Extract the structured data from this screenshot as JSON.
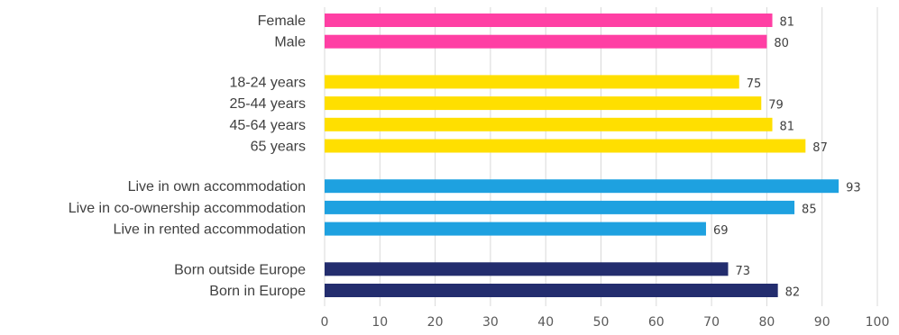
{
  "chart_data": {
    "type": "bar",
    "orientation": "horizontal",
    "title": "",
    "xlabel": "",
    "ylabel": "",
    "xlim": [
      0,
      100
    ],
    "x_ticks": [
      "0",
      "10",
      "20",
      "30",
      "40",
      "50",
      "60",
      "70",
      "80",
      "90",
      "100"
    ],
    "grid": true,
    "legend": "none",
    "groups": [
      {
        "color": "#ff3fa4",
        "items": [
          {
            "label": "Female",
            "value": 81
          },
          {
            "label": "Male",
            "value": 80
          }
        ]
      },
      {
        "color": "#ffdf00",
        "items": [
          {
            "label": "18-24 years",
            "value": 75
          },
          {
            "label": "25-44 years",
            "value": 79
          },
          {
            "label": "45-64 years",
            "value": 81
          },
          {
            "label": "65 years",
            "value": 87
          }
        ]
      },
      {
        "color": "#1ea1e0",
        "items": [
          {
            "label": "Live in own accommodation",
            "value": 93
          },
          {
            "label": "Live in co-ownership accommodation",
            "value": 85
          },
          {
            "label": "Live in rented accommodation",
            "value": 69
          }
        ]
      },
      {
        "color": "#232d6e",
        "items": [
          {
            "label": "Born outside Europe",
            "value": 73
          },
          {
            "label": "Born in Europe",
            "value": 82
          }
        ]
      }
    ]
  }
}
